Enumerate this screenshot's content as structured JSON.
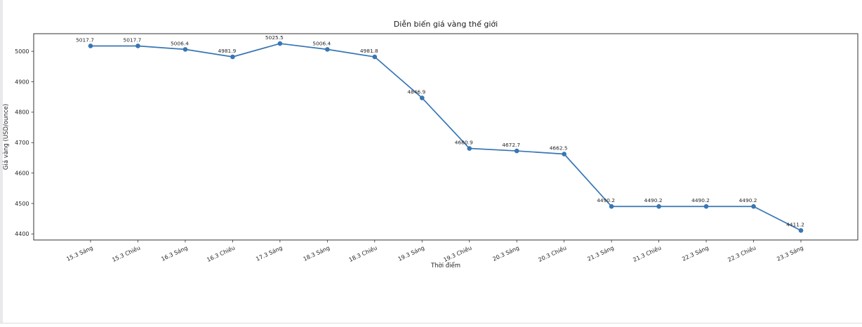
{
  "page": {
    "background": "#ffffff"
  },
  "decorations": {
    "left_gutter_color": "#e9e9eb",
    "divider_color": "#dcdcdc"
  },
  "chart_data": {
    "type": "line",
    "title": "Diễn biến giá vàng thế giới",
    "xlabel": "Thời điểm",
    "ylabel": "Giá vàng (USD/ounce)",
    "categories": [
      "15.3 Sáng",
      "15.3 Chiều",
      "16.3 Sáng",
      "16.3 Chiều",
      "17.3 Sáng",
      "18.3 Sáng",
      "18.3 Chiều",
      "19.3 Sáng",
      "19.3 Chiều",
      "20.3 Sáng",
      "20.3 Chiều",
      "21.3 Sáng",
      "21.3 Chiều",
      "22.3 Sáng",
      "22.3 Chiều",
      "23.3 Sáng"
    ],
    "values": [
      5017.7,
      5017.7,
      5006.4,
      4981.9,
      5025.5,
      5006.4,
      4981.8,
      4846.9,
      4680.9,
      4672.7,
      4662.5,
      4490.2,
      4490.2,
      4490.2,
      4490.2,
      4411.2
    ],
    "data_labels": [
      "5017.7",
      "5017.7",
      "5006.4",
      "4981.9",
      "5025.5",
      "5006.4",
      "4981.8",
      "4846.9",
      "4680.9",
      "4672.7",
      "4662.5",
      "4490.2",
      "4490.2",
      "4490.2",
      "4490.2",
      "4411.2"
    ],
    "y_ticks": [
      4400,
      4500,
      4600,
      4700,
      4800,
      4900,
      5000
    ],
    "ylim": [
      4380,
      5058
    ],
    "x_tick_rotation_deg": 25,
    "grid": false,
    "legend_position": "none",
    "line_color": "#3876b4",
    "marker": "circle",
    "marker_color": "#3876b4",
    "spine_color": "#333333",
    "text_color": "#262626",
    "title_color": "#1a1a1a"
  }
}
